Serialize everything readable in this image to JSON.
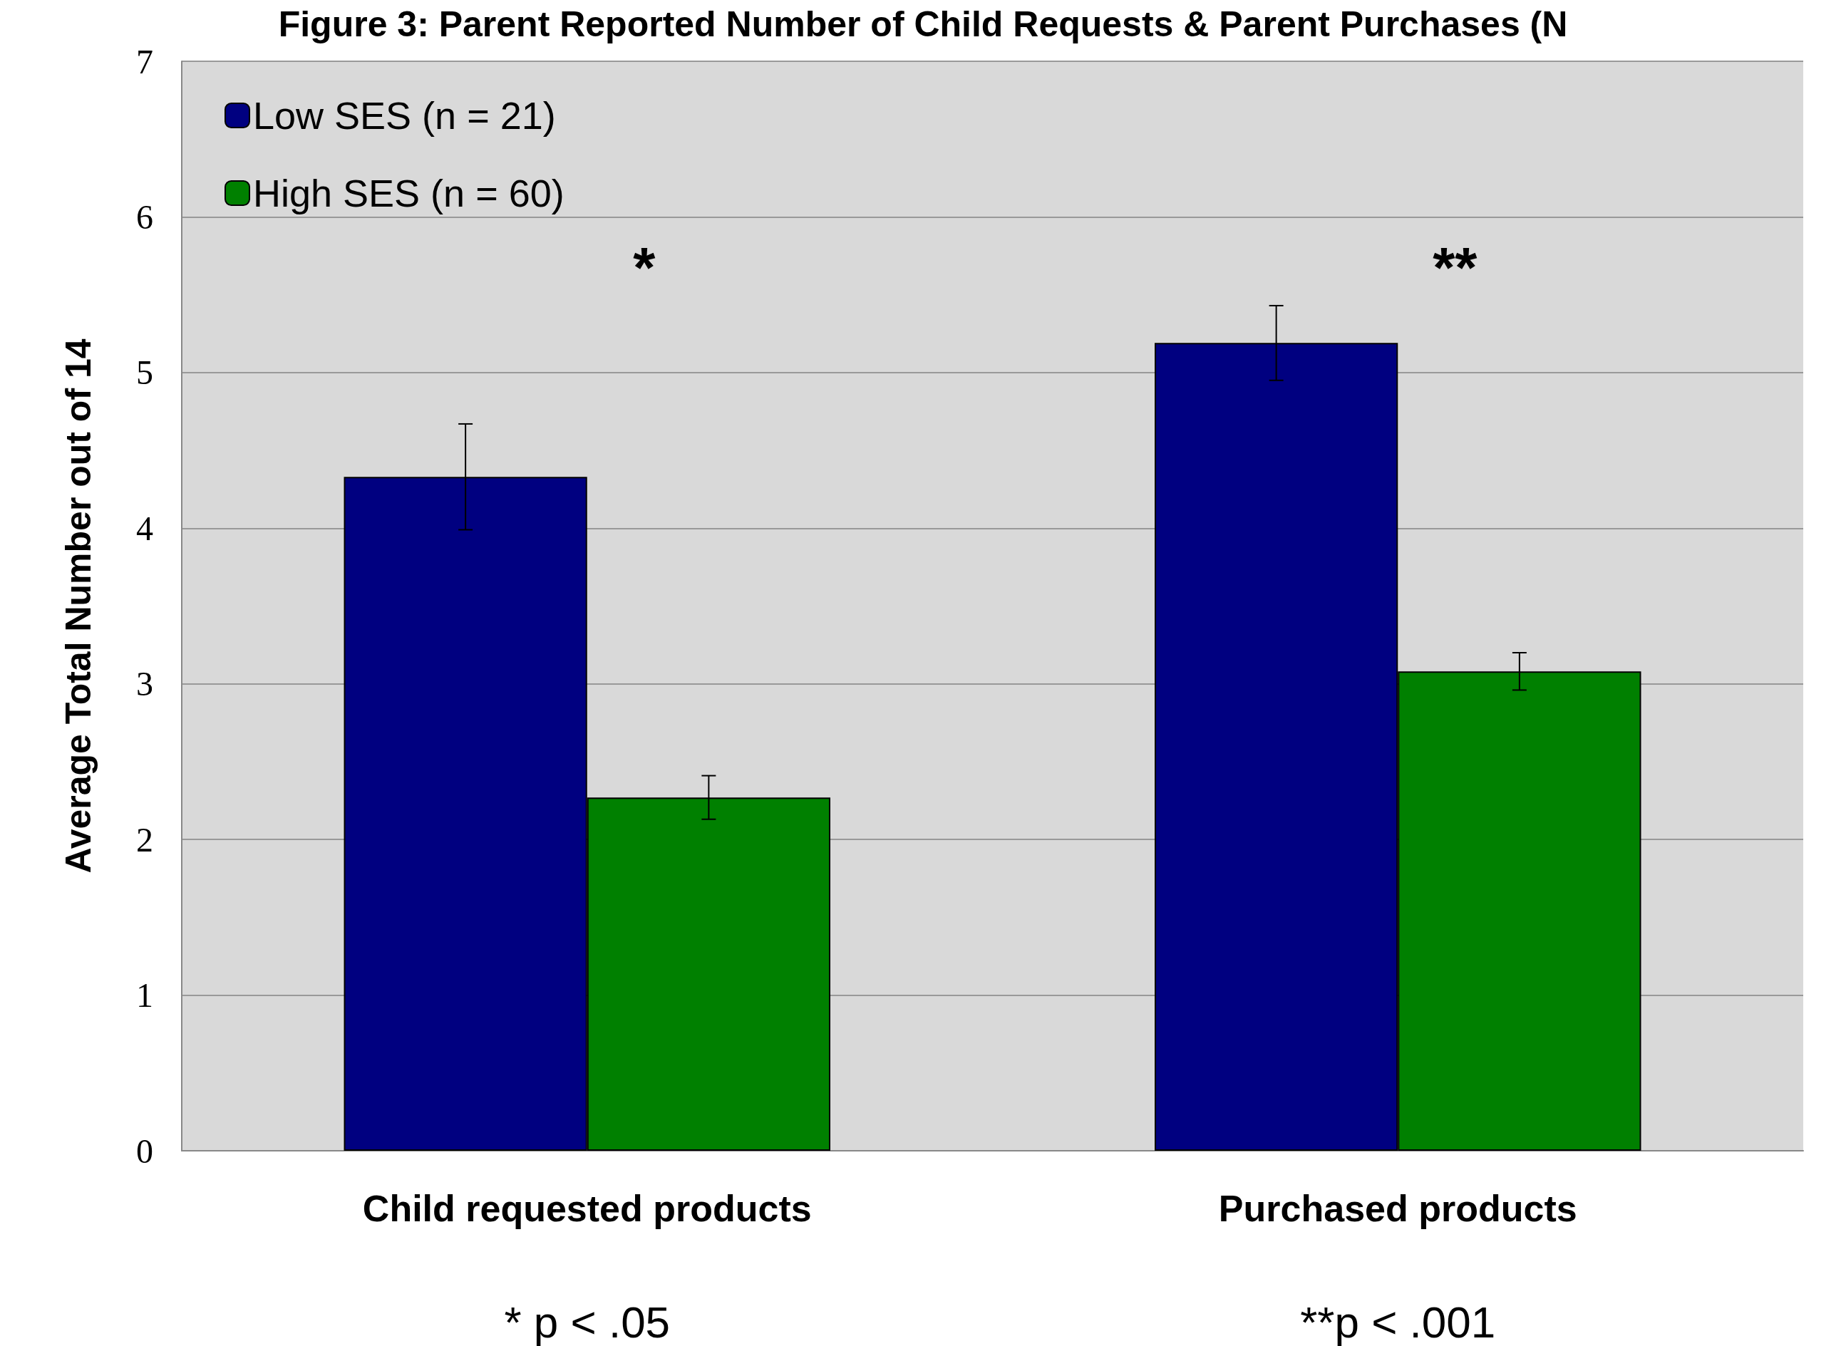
{
  "chart_data": {
    "type": "bar",
    "title": "Figure 3: Parent Reported Number of Child Requests & Parent Purchases (N",
    "ylabel": "Average Total Number out of 14",
    "categories": [
      "Child requested products",
      "Purchased products"
    ],
    "series": [
      {
        "name": "Low SES (n = 21)",
        "color": "#000080",
        "values": [
          4.33,
          5.19
        ],
        "errors": [
          0.34,
          0.24
        ]
      },
      {
        "name": "High SES (n = 60)",
        "color": "#008000",
        "values": [
          2.27,
          3.08
        ],
        "errors": [
          0.14,
          0.12
        ]
      }
    ],
    "ylim": [
      0,
      7
    ],
    "yticks": [
      0,
      1,
      2,
      3,
      4,
      5,
      6,
      7
    ],
    "grid": "y",
    "legend": "top left",
    "annotations": [
      "*",
      "**",
      "* p < .05",
      "**p < .001"
    ]
  }
}
